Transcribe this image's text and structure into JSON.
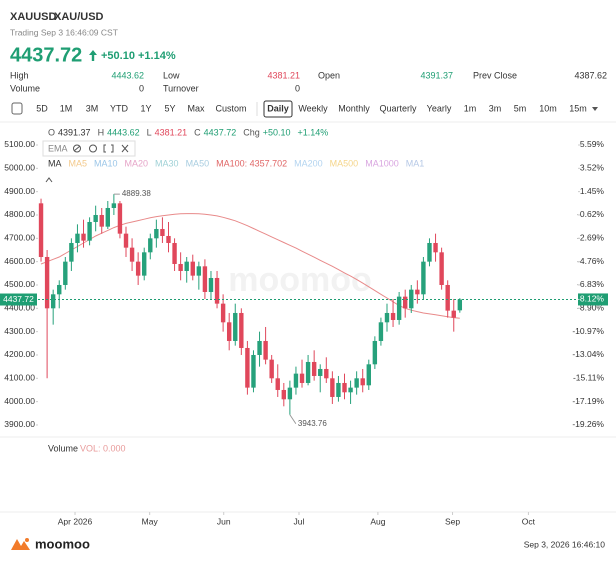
{
  "header": {
    "symbol": "XAUUSD",
    "name": "XAU/USD",
    "status": "Trading Sep 3 16:46:09 CST",
    "price": "4437.72",
    "change": "+50.10",
    "change_pct": "+1.14%"
  },
  "stats": [
    {
      "label": "High",
      "value": "4443.62"
    },
    {
      "label": "Low",
      "value": "4381.21"
    },
    {
      "label": "Open",
      "value": "4391.37"
    },
    {
      "label": "Prev Close",
      "value": "4387.62"
    },
    {
      "label": "Volume",
      "value": "0"
    },
    {
      "label": "Turnover",
      "value": "0"
    }
  ],
  "toolbar": {
    "ranges": [
      "5D",
      "1M",
      "3M",
      "YTD",
      "1Y",
      "5Y",
      "Max",
      "Custom"
    ],
    "periods": [
      "Daily",
      "Weekly",
      "Monthly",
      "Quarterly",
      "Yearly",
      "1m",
      "3m",
      "5m",
      "10m",
      "15m"
    ],
    "selected_period": 0
  },
  "ohlc_bar": [
    {
      "label": "O",
      "value": "4391.37",
      "color": "#333333"
    },
    {
      "label": "H",
      "value": "4443.62",
      "color": "#1f9e73"
    },
    {
      "label": "L",
      "value": "4381.21",
      "color": "#e0475b"
    },
    {
      "label": "C",
      "value": "4437.72",
      "color": "#1f9e73"
    },
    {
      "label": "Chg",
      "value": "+50.10",
      "color": "#1f9e73"
    },
    {
      "label": "",
      "value": "+1.14%",
      "color": "#1f9e73"
    }
  ],
  "indicator": "EMA",
  "ma_legend": [
    {
      "name": "MA",
      "color": "#333333"
    },
    {
      "name": "MA5",
      "color": "#f3c98b"
    },
    {
      "name": "MA10",
      "color": "#9bc6e8"
    },
    {
      "name": "MA20",
      "color": "#e6a4c8"
    },
    {
      "name": "MA30",
      "color": "#9fd1d6"
    },
    {
      "name": "MA50",
      "color": "#a8cde0"
    },
    {
      "name": "MA100: 4357.702",
      "color": "#e06666"
    },
    {
      "name": "MA200",
      "color": "#b3d4f0"
    },
    {
      "name": "MA500",
      "color": "#f5d58a"
    },
    {
      "name": "MA1000",
      "color": "#d9a6e0"
    },
    {
      "name": "MA1",
      "color": "#b5c8e6"
    }
  ],
  "chart_data": {
    "type": "candlestick",
    "up_color": "#26a17b",
    "down_color": "#e0475b",
    "xlim": [
      -0.5,
      88.8
    ],
    "ylim": [
      3857,
      5130
    ],
    "y2lim": [
      -20.15,
      6.21
    ],
    "yticks": [
      {
        "value": 5100,
        "label": "5100.00"
      },
      {
        "value": 5000,
        "label": "5000.00"
      },
      {
        "value": 4900,
        "label": "4900.00"
      },
      {
        "value": 4800,
        "label": "4800.00"
      },
      {
        "value": 4700,
        "label": "4700.00"
      },
      {
        "value": 4600,
        "label": "4600.00"
      },
      {
        "value": 4500,
        "label": "4500.00"
      },
      {
        "value": 4400,
        "label": "4400.00"
      },
      {
        "value": 4300,
        "label": "4300.00"
      },
      {
        "value": 4200,
        "label": "4200.00"
      },
      {
        "value": 4100,
        "label": "4100.00"
      },
      {
        "value": 4000,
        "label": "4000.00"
      },
      {
        "value": 3900,
        "label": "3900.00"
      }
    ],
    "y2ticks": [
      {
        "value": 5.59,
        "label": "5.59%"
      },
      {
        "value": 3.52,
        "label": "3.52%"
      },
      {
        "value": 1.45,
        "label": "1.45%"
      },
      {
        "value": -0.62,
        "label": "-0.62%"
      },
      {
        "value": -2.69,
        "label": "-2.69%"
      },
      {
        "value": -4.76,
        "label": "-4.76%"
      },
      {
        "value": -6.83,
        "label": "-6.83%"
      },
      {
        "value": -8.9,
        "label": "-8.90%"
      },
      {
        "value": -10.97,
        "label": "-10.97%"
      },
      {
        "value": -13.04,
        "label": "-13.04%"
      },
      {
        "value": -15.11,
        "label": "-15.11%"
      },
      {
        "value": -17.19,
        "label": "-17.19%"
      },
      {
        "value": -19.26,
        "label": "-19.26%"
      }
    ],
    "xticks": [
      {
        "value": 5.6,
        "label": "Apr 2026"
      },
      {
        "value": 17.9,
        "label": "May"
      },
      {
        "value": 30.1,
        "label": "Jun"
      },
      {
        "value": 42.5,
        "label": "Jul"
      },
      {
        "value": 55.5,
        "label": "Aug"
      },
      {
        "value": 67.8,
        "label": "Sep"
      },
      {
        "value": 80.3,
        "label": "Oct"
      }
    ],
    "candles": [
      [
        4850,
        4870,
        4600,
        4620
      ],
      [
        4620,
        4650,
        4100,
        4400
      ],
      [
        4400,
        4480,
        4330,
        4460
      ],
      [
        4460,
        4520,
        4400,
        4500
      ],
      [
        4500,
        4620,
        4480,
        4600
      ],
      [
        4600,
        4700,
        4560,
        4680
      ],
      [
        4680,
        4760,
        4640,
        4720
      ],
      [
        4720,
        4780,
        4660,
        4690
      ],
      [
        4690,
        4790,
        4670,
        4770
      ],
      [
        4770,
        4840,
        4730,
        4800
      ],
      [
        4800,
        4830,
        4720,
        4750
      ],
      [
        4750,
        4860,
        4740,
        4830
      ],
      [
        4830,
        4889.38,
        4800,
        4850
      ],
      [
        4850,
        4860,
        4700,
        4720
      ],
      [
        4720,
        4750,
        4620,
        4660
      ],
      [
        4660,
        4700,
        4560,
        4600
      ],
      [
        4600,
        4640,
        4500,
        4540
      ],
      [
        4540,
        4660,
        4520,
        4640
      ],
      [
        4640,
        4720,
        4610,
        4700
      ],
      [
        4700,
        4780,
        4660,
        4740
      ],
      [
        4740,
        4790,
        4680,
        4710
      ],
      [
        4710,
        4770,
        4640,
        4680
      ],
      [
        4680,
        4700,
        4560,
        4590
      ],
      [
        4590,
        4640,
        4520,
        4560
      ],
      [
        4560,
        4620,
        4510,
        4600
      ],
      [
        4600,
        4630,
        4520,
        4540
      ],
      [
        4540,
        4600,
        4480,
        4580
      ],
      [
        4580,
        4610,
        4440,
        4470
      ],
      [
        4470,
        4560,
        4440,
        4530
      ],
      [
        4530,
        4560,
        4400,
        4420
      ],
      [
        4420,
        4460,
        4300,
        4340
      ],
      [
        4340,
        4380,
        4220,
        4260
      ],
      [
        4260,
        4420,
        4240,
        4380
      ],
      [
        4380,
        4400,
        4200,
        4230
      ],
      [
        4230,
        4260,
        4030,
        4060
      ],
      [
        4060,
        4220,
        4040,
        4200
      ],
      [
        4200,
        4300,
        4150,
        4260
      ],
      [
        4260,
        4320,
        4160,
        4180
      ],
      [
        4180,
        4200,
        4080,
        4100
      ],
      [
        4100,
        4160,
        4020,
        4050
      ],
      [
        4050,
        4080,
        3980,
        4010
      ],
      [
        4010,
        4090,
        3943.76,
        4060
      ],
      [
        4060,
        4150,
        4030,
        4120
      ],
      [
        4120,
        4180,
        4060,
        4080
      ],
      [
        4080,
        4200,
        4070,
        4170
      ],
      [
        4170,
        4220,
        4090,
        4110
      ],
      [
        4110,
        4160,
        4040,
        4140
      ],
      [
        4140,
        4190,
        4080,
        4100
      ],
      [
        4100,
        4130,
        3990,
        4020
      ],
      [
        4020,
        4110,
        4000,
        4080
      ],
      [
        4080,
        4120,
        4010,
        4040
      ],
      [
        4040,
        4090,
        3990,
        4060
      ],
      [
        4060,
        4130,
        4030,
        4100
      ],
      [
        4100,
        4140,
        4040,
        4070
      ],
      [
        4070,
        4180,
        4050,
        4160
      ],
      [
        4160,
        4280,
        4140,
        4260
      ],
      [
        4260,
        4360,
        4240,
        4340
      ],
      [
        4340,
        4420,
        4300,
        4380
      ],
      [
        4380,
        4440,
        4320,
        4350
      ],
      [
        4350,
        4470,
        4330,
        4450
      ],
      [
        4450,
        4480,
        4360,
        4400
      ],
      [
        4400,
        4500,
        4380,
        4480
      ],
      [
        4480,
        4520,
        4420,
        4460
      ],
      [
        4460,
        4620,
        4440,
        4600
      ],
      [
        4600,
        4700,
        4580,
        4680
      ],
      [
        4680,
        4720,
        4600,
        4640
      ],
      [
        4640,
        4660,
        4480,
        4500
      ],
      [
        4500,
        4520,
        4360,
        4390
      ],
      [
        4390,
        4440,
        4300,
        4360
      ],
      [
        4391.37,
        4443.62,
        4381.21,
        4437.72
      ]
    ],
    "overlays": [
      {
        "color": "#e88a8a",
        "values": [
          4590,
          4600,
          4610,
          4620,
          4635,
          4650,
          4665,
          4680,
          4695,
          4710,
          4722,
          4734,
          4746,
          4756,
          4764,
          4770,
          4776,
          4782,
          4788,
          4793,
          4797,
          4800,
          4803,
          4805,
          4806,
          4806,
          4805,
          4803,
          4800,
          4796,
          4790,
          4783,
          4775,
          4765,
          4754,
          4742,
          4730,
          4718,
          4706,
          4694,
          4682,
          4670,
          4658,
          4645,
          4632,
          4619,
          4606,
          4593,
          4580,
          4566,
          4552,
          4538,
          4524,
          4508,
          4492,
          4476,
          4460,
          4444,
          4428,
          4412,
          4400,
          4392,
          4386,
          4380,
          4376,
          4372,
          4368,
          4364,
          4360,
          4357.702
        ]
      }
    ],
    "annotations": [
      {
        "x": 12,
        "value": 4889.38
      },
      {
        "x": 41,
        "value": 3943.76
      }
    ],
    "last_price": {
      "value": 4437.72,
      "label": "4437.72",
      "pct": -8.12,
      "pct_label": "-8.12%",
      "color": "#1f9e73"
    }
  },
  "volume_panel": {
    "title": "Volume",
    "value_label": "VOL: 0.000"
  },
  "footer": {
    "brand": "moomoo",
    "timestamp": "Sep 3, 2026 16:46:10"
  }
}
